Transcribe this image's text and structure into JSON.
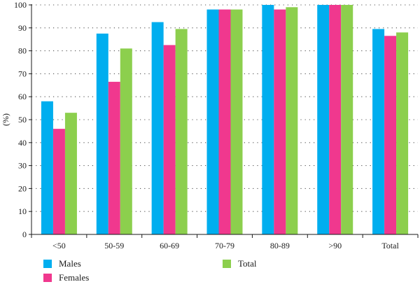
{
  "chart_data": {
    "type": "bar",
    "title": "",
    "xlabel": "",
    "ylabel": "(%)",
    "ylim": [
      0,
      100
    ],
    "yticks": [
      0,
      10,
      20,
      30,
      40,
      50,
      60,
      70,
      80,
      90,
      100
    ],
    "grid": "horizontal dotted",
    "legend_position": "bottom",
    "categories": [
      "<50",
      "50-59",
      "60-69",
      "70-79",
      "80-89",
      ">90",
      "Total"
    ],
    "series": [
      {
        "name": "Males",
        "color": "#00AEEF",
        "values": [
          58,
          87.5,
          92.5,
          98,
          100,
          100,
          89.5
        ]
      },
      {
        "name": "Females",
        "color": "#F0388E",
        "values": [
          46,
          66.5,
          82.5,
          98,
          98,
          100,
          86.5
        ]
      },
      {
        "name": "Total",
        "color": "#8CCF4D",
        "values": [
          53,
          81,
          89.5,
          98,
          99,
          100,
          88
        ]
      }
    ]
  }
}
